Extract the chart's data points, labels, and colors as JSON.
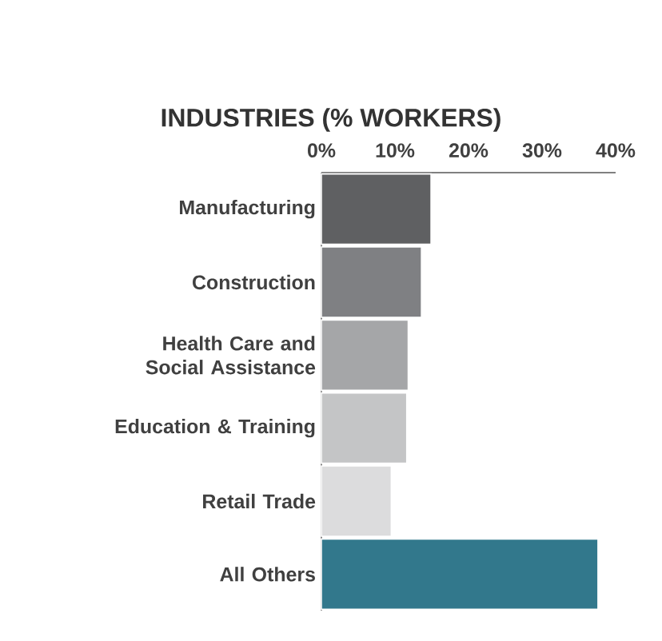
{
  "chart_data": {
    "type": "bar",
    "orientation": "horizontal",
    "title": "INDUSTRIES (% WORKERS)",
    "categories": [
      "Manufacturing",
      "Construction",
      "Health Care and Social Assistance",
      "Education & Training",
      "Retail Trade",
      "All Others"
    ],
    "values": [
      14.9,
      13.6,
      11.8,
      11.6,
      9.5,
      37.6
    ],
    "colors": [
      "#5f6062",
      "#7f8083",
      "#a5a6a8",
      "#c4c5c6",
      "#dcdcdd",
      "#32788c"
    ],
    "xlim": [
      0,
      40
    ],
    "xticks": [
      {
        "value": 0,
        "label": "0%"
      },
      {
        "value": 10,
        "label": "10%"
      },
      {
        "value": 20,
        "label": "20%"
      },
      {
        "value": 30,
        "label": "30%"
      },
      {
        "value": 40,
        "label": "40%"
      }
    ],
    "grid": false
  }
}
